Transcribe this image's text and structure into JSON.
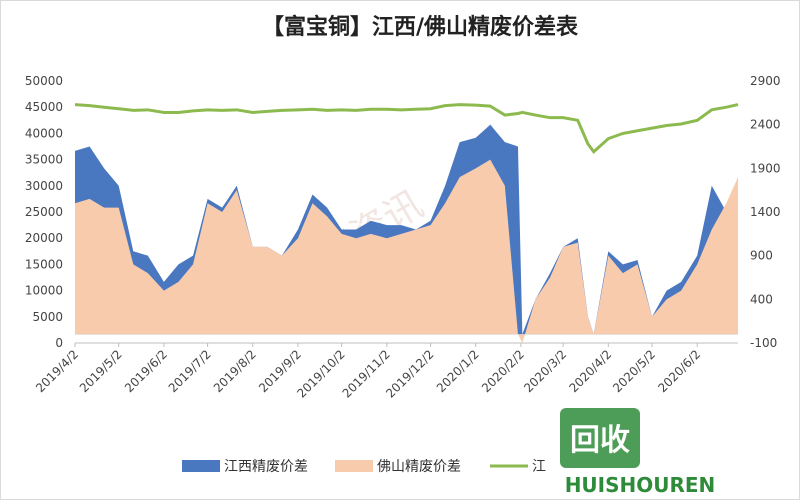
{
  "chart_data": {
    "type": "area-line",
    "title": "【富宝铜】江西/佛山精废价差表",
    "x": [
      "2019-04-02",
      "2019-04-12",
      "2019-04-22",
      "2019-05-02",
      "2019-05-12",
      "2019-05-22",
      "2019-06-02",
      "2019-06-12",
      "2019-06-22",
      "2019-07-02",
      "2019-07-12",
      "2019-07-22",
      "2019-08-02",
      "2019-08-12",
      "2019-08-22",
      "2019-09-02",
      "2019-09-12",
      "2019-09-22",
      "2019-10-02",
      "2019-10-12",
      "2019-10-22",
      "2019-11-02",
      "2019-11-12",
      "2019-11-22",
      "2019-12-02",
      "2019-12-12",
      "2019-12-22",
      "2020-01-02",
      "2020-01-12",
      "2020-01-22",
      "2020-01-31",
      "2020-02-03",
      "2020-02-12",
      "2020-02-22",
      "2020-03-02",
      "2020-03-12",
      "2020-03-19",
      "2020-03-23",
      "2020-04-02",
      "2020-04-12",
      "2020-04-22",
      "2020-05-02",
      "2020-05-12",
      "2020-05-22",
      "2020-06-02",
      "2020-06-12",
      "2020-06-22",
      "2020-06-30"
    ],
    "series": [
      {
        "name": "江西精废价差",
        "color": "#4a78c0",
        "axis": "y2",
        "values": [
          2100,
          2150,
          1900,
          1700,
          950,
          900,
          600,
          800,
          900,
          1550,
          1450,
          1700,
          1000,
          1000,
          900,
          1200,
          1600,
          1450,
          1200,
          1200,
          1300,
          1250,
          1250,
          1200,
          1300,
          1700,
          2200,
          2250,
          2400,
          2200,
          2150,
          0,
          400,
          700,
          1000,
          1100,
          200,
          0,
          950,
          800,
          850,
          200,
          500,
          600,
          900,
          1700,
          1400,
          1800
        ]
      },
      {
        "name": "佛山精废价差",
        "color": "#f8cbad",
        "axis": "y2",
        "values": [
          1500,
          1550,
          1450,
          1450,
          800,
          700,
          500,
          600,
          800,
          1500,
          1400,
          1650,
          1000,
          1000,
          900,
          1100,
          1500,
          1350,
          1150,
          1100,
          1150,
          1100,
          1150,
          1200,
          1250,
          1500,
          1800,
          1900,
          2000,
          1700,
          0,
          -100,
          400,
          650,
          1000,
          1050,
          200,
          0,
          900,
          700,
          800,
          200,
          400,
          500,
          800,
          1200,
          1500,
          1800
        ]
      },
      {
        "name": "江",
        "color": "#8cba4f",
        "axis": "y",
        "values": [
          45500,
          45300,
          45000,
          44700,
          44400,
          44500,
          44000,
          44000,
          44300,
          44500,
          44400,
          44500,
          44000,
          44200,
          44400,
          44500,
          44600,
          44400,
          44500,
          44400,
          44600,
          44600,
          44500,
          44600,
          44700,
          45300,
          45500,
          45400,
          45200,
          43500,
          43800,
          44000,
          43500,
          43000,
          43000,
          42500,
          38000,
          36500,
          39000,
          40000,
          40500,
          41000,
          41500,
          41800,
          42500,
          44500,
          45000,
          45500
        ]
      }
    ],
    "xlim": [
      "2019-04-02",
      "2020-06-30"
    ],
    "xticks": [
      {
        "value": "2019-04-02",
        "label": "2019/4/2"
      },
      {
        "value": "2019-05-02",
        "label": "2019/5/2"
      },
      {
        "value": "2019-06-02",
        "label": "2019/6/2"
      },
      {
        "value": "2019-07-02",
        "label": "2019/7/2"
      },
      {
        "value": "2019-08-02",
        "label": "2019/8/2"
      },
      {
        "value": "2019-09-02",
        "label": "2019/9/2"
      },
      {
        "value": "2019-10-02",
        "label": "2019/10/2"
      },
      {
        "value": "2019-11-02",
        "label": "2019/11/2"
      },
      {
        "value": "2019-12-02",
        "label": "2019/12/2"
      },
      {
        "value": "2020-01-02",
        "label": "2020/1/2"
      },
      {
        "value": "2020-02-02",
        "label": "2020/2/2"
      },
      {
        "value": "2020-03-02",
        "label": "2020/3/2"
      },
      {
        "value": "2020-04-02",
        "label": "2020/4/2"
      },
      {
        "value": "2020-05-02",
        "label": "2020/5/2"
      },
      {
        "value": "2020-06-02",
        "label": "2020/6/2"
      }
    ],
    "ylim": [
      0,
      50000
    ],
    "yticks": [
      0,
      5000,
      10000,
      15000,
      20000,
      25000,
      30000,
      35000,
      40000,
      45000,
      50000
    ],
    "y2lim": [
      -100,
      2900
    ],
    "y2ticks": [
      -100,
      400,
      900,
      1400,
      1900,
      2400,
      2900
    ],
    "legend": "bottom",
    "watermarks": [
      "富宝资讯",
      "回收",
      "HUISHOUREN"
    ]
  }
}
